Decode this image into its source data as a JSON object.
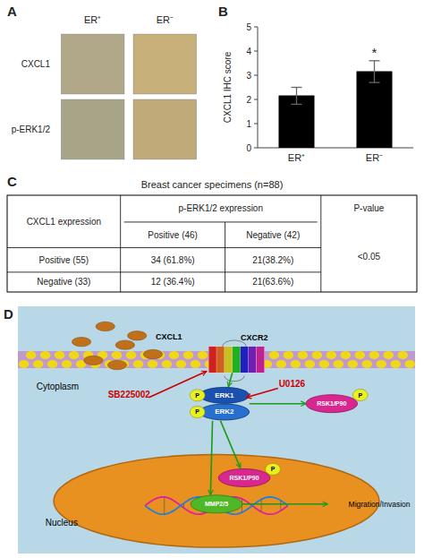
{
  "chart_data": [
    {
      "type": "image_grid",
      "title": "A",
      "categories": [
        "ER⁺",
        "ER⁻"
      ],
      "annotations": [
        "CXCL1",
        "p-ERK1/2"
      ],
      "colors": [
        "#b0a888",
        "#c8b07a",
        "#a8a488",
        "#c0aa7a"
      ]
    },
    {
      "type": "bar",
      "title": "B",
      "categories": [
        "ER⁺",
        "ER⁻"
      ],
      "values": [
        2.15,
        3.15
      ],
      "errors": [
        0.35,
        0.45
      ],
      "color": "#000000",
      "ylabel": "CXCL1 IHC score",
      "ylim": [
        0,
        5
      ],
      "yticks": [
        0,
        1,
        2,
        3,
        4,
        5
      ],
      "annotations": [
        {
          "text": "*",
          "category": "ER⁻"
        }
      ]
    },
    {
      "type": "table",
      "title": "C",
      "subtitle": "Breast cancer specimens (n=88)",
      "header": {
        "stub": "CXCL1 expression",
        "group": "p-ERK1/2 expression",
        "columns": [
          "Positive (46)",
          "Negative (42)"
        ],
        "test": "P-value"
      },
      "rows": [
        [
          "Positive (55)",
          "34 (61.8%)",
          "21(38.2%)"
        ],
        [
          "Negative (33)",
          "12 (36.4%)",
          "21(63.6%)"
        ]
      ],
      "annotations": [
        "<0.05"
      ]
    },
    {
      "type": "diagram",
      "title": "D",
      "colors": [
        "#b8d8e8",
        "#e89020"
      ],
      "annotations": [
        "CXCL1",
        "CXCR2",
        "ERK1",
        "ERK2",
        "P",
        "P",
        "P",
        "P",
        "MMP2/5",
        "RSK1/P90",
        "RSK1/P90",
        "Cytoplasm",
        "Nucleus",
        "SB225002",
        "U0126",
        "Migration/Invasion"
      ]
    }
  ]
}
